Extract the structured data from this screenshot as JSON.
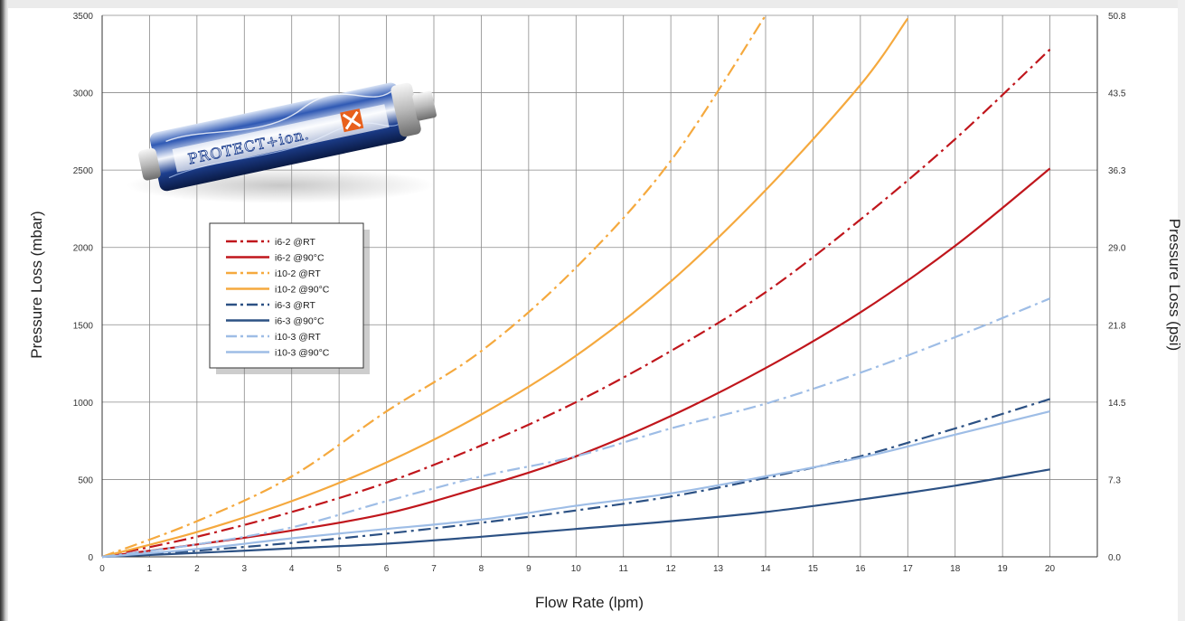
{
  "chart_data": {
    "type": "line",
    "title": "",
    "xlabel": "Flow Rate (lpm)",
    "ylabel": "Pressure Loss (mbar)",
    "ylabel_right": "Pressure Loss (psi)",
    "xlim": [
      0,
      21
    ],
    "ylim": [
      0,
      3500
    ],
    "x_ticks": [
      "0",
      "1",
      "2",
      "3",
      "4",
      "5",
      "6",
      "7",
      "8",
      "9",
      "10",
      "11",
      "12",
      "13",
      "14",
      "15",
      "16",
      "17",
      "18",
      "19",
      "20"
    ],
    "y_ticks": [
      "0",
      "500",
      "1000",
      "1500",
      "2000",
      "2500",
      "3000",
      "3500"
    ],
    "y_right_ticks": [
      "0.0",
      "7.3",
      "14.5",
      "21.8",
      "29.0",
      "36.3",
      "43.5",
      "50.8"
    ],
    "grid": true,
    "legend_position": "upper-left",
    "series": [
      {
        "name": "i6-2  @RT",
        "color": "#c0161c",
        "dash": "dashdot",
        "x": [
          0,
          2,
          4,
          6,
          8,
          10,
          12,
          14,
          16,
          18,
          20
        ],
        "y": [
          0,
          130,
          290,
          480,
          720,
          1000,
          1330,
          1710,
          2180,
          2700,
          3280
        ]
      },
      {
        "name": "i6-2  @90°C",
        "color": "#c0161c",
        "dash": "solid",
        "x": [
          0,
          2,
          4,
          6,
          8,
          10,
          12,
          14,
          16,
          18,
          20
        ],
        "y": [
          0,
          80,
          170,
          280,
          450,
          650,
          910,
          1220,
          1580,
          2010,
          2510
        ]
      },
      {
        "name": "i10-2 @RT",
        "color": "#f5a93e",
        "dash": "dashdot",
        "x": [
          0,
          2,
          4,
          6,
          8,
          10,
          12,
          14
        ],
        "y": [
          0,
          230,
          520,
          940,
          1330,
          1870,
          2560,
          3500
        ]
      },
      {
        "name": "i10-2 @90°C",
        "color": "#f5a93e",
        "dash": "solid",
        "x": [
          0,
          2,
          4,
          6,
          8,
          10,
          12,
          14,
          16,
          17
        ],
        "y": [
          0,
          160,
          360,
          610,
          920,
          1300,
          1780,
          2370,
          3050,
          3480
        ]
      },
      {
        "name": "i6-3  @RT",
        "color": "#2c5184",
        "dash": "dashdot",
        "x": [
          0,
          2,
          4,
          6,
          8,
          10,
          12,
          14,
          16,
          18,
          20
        ],
        "y": [
          0,
          40,
          90,
          150,
          220,
          300,
          390,
          510,
          650,
          830,
          1020
        ]
      },
      {
        "name": "i6-3  @90°C",
        "color": "#2c5184",
        "dash": "solid",
        "x": [
          0,
          2,
          4,
          6,
          8,
          10,
          12,
          14,
          16,
          18,
          20
        ],
        "y": [
          0,
          25,
          55,
          85,
          130,
          180,
          230,
          290,
          370,
          460,
          565
        ]
      },
      {
        "name": "i10-3 @RT",
        "color": "#9ebde6",
        "dash": "dashdot",
        "x": [
          0,
          2,
          4,
          6,
          8,
          10,
          12,
          14,
          16,
          18,
          20
        ],
        "y": [
          0,
          80,
          190,
          360,
          520,
          650,
          830,
          990,
          1190,
          1420,
          1670
        ]
      },
      {
        "name": "i10-3 @90°C",
        "color": "#9ebde6",
        "dash": "solid",
        "x": [
          0,
          2,
          4,
          6,
          8,
          10,
          12,
          14,
          16,
          18,
          20
        ],
        "y": [
          0,
          50,
          120,
          180,
          240,
          330,
          410,
          520,
          640,
          790,
          940
        ]
      }
    ]
  },
  "product_image": {
    "brand_text": "PROTECT+ion.",
    "accent_color": "#e8601c",
    "icon": "filter-cartridge-icon"
  }
}
